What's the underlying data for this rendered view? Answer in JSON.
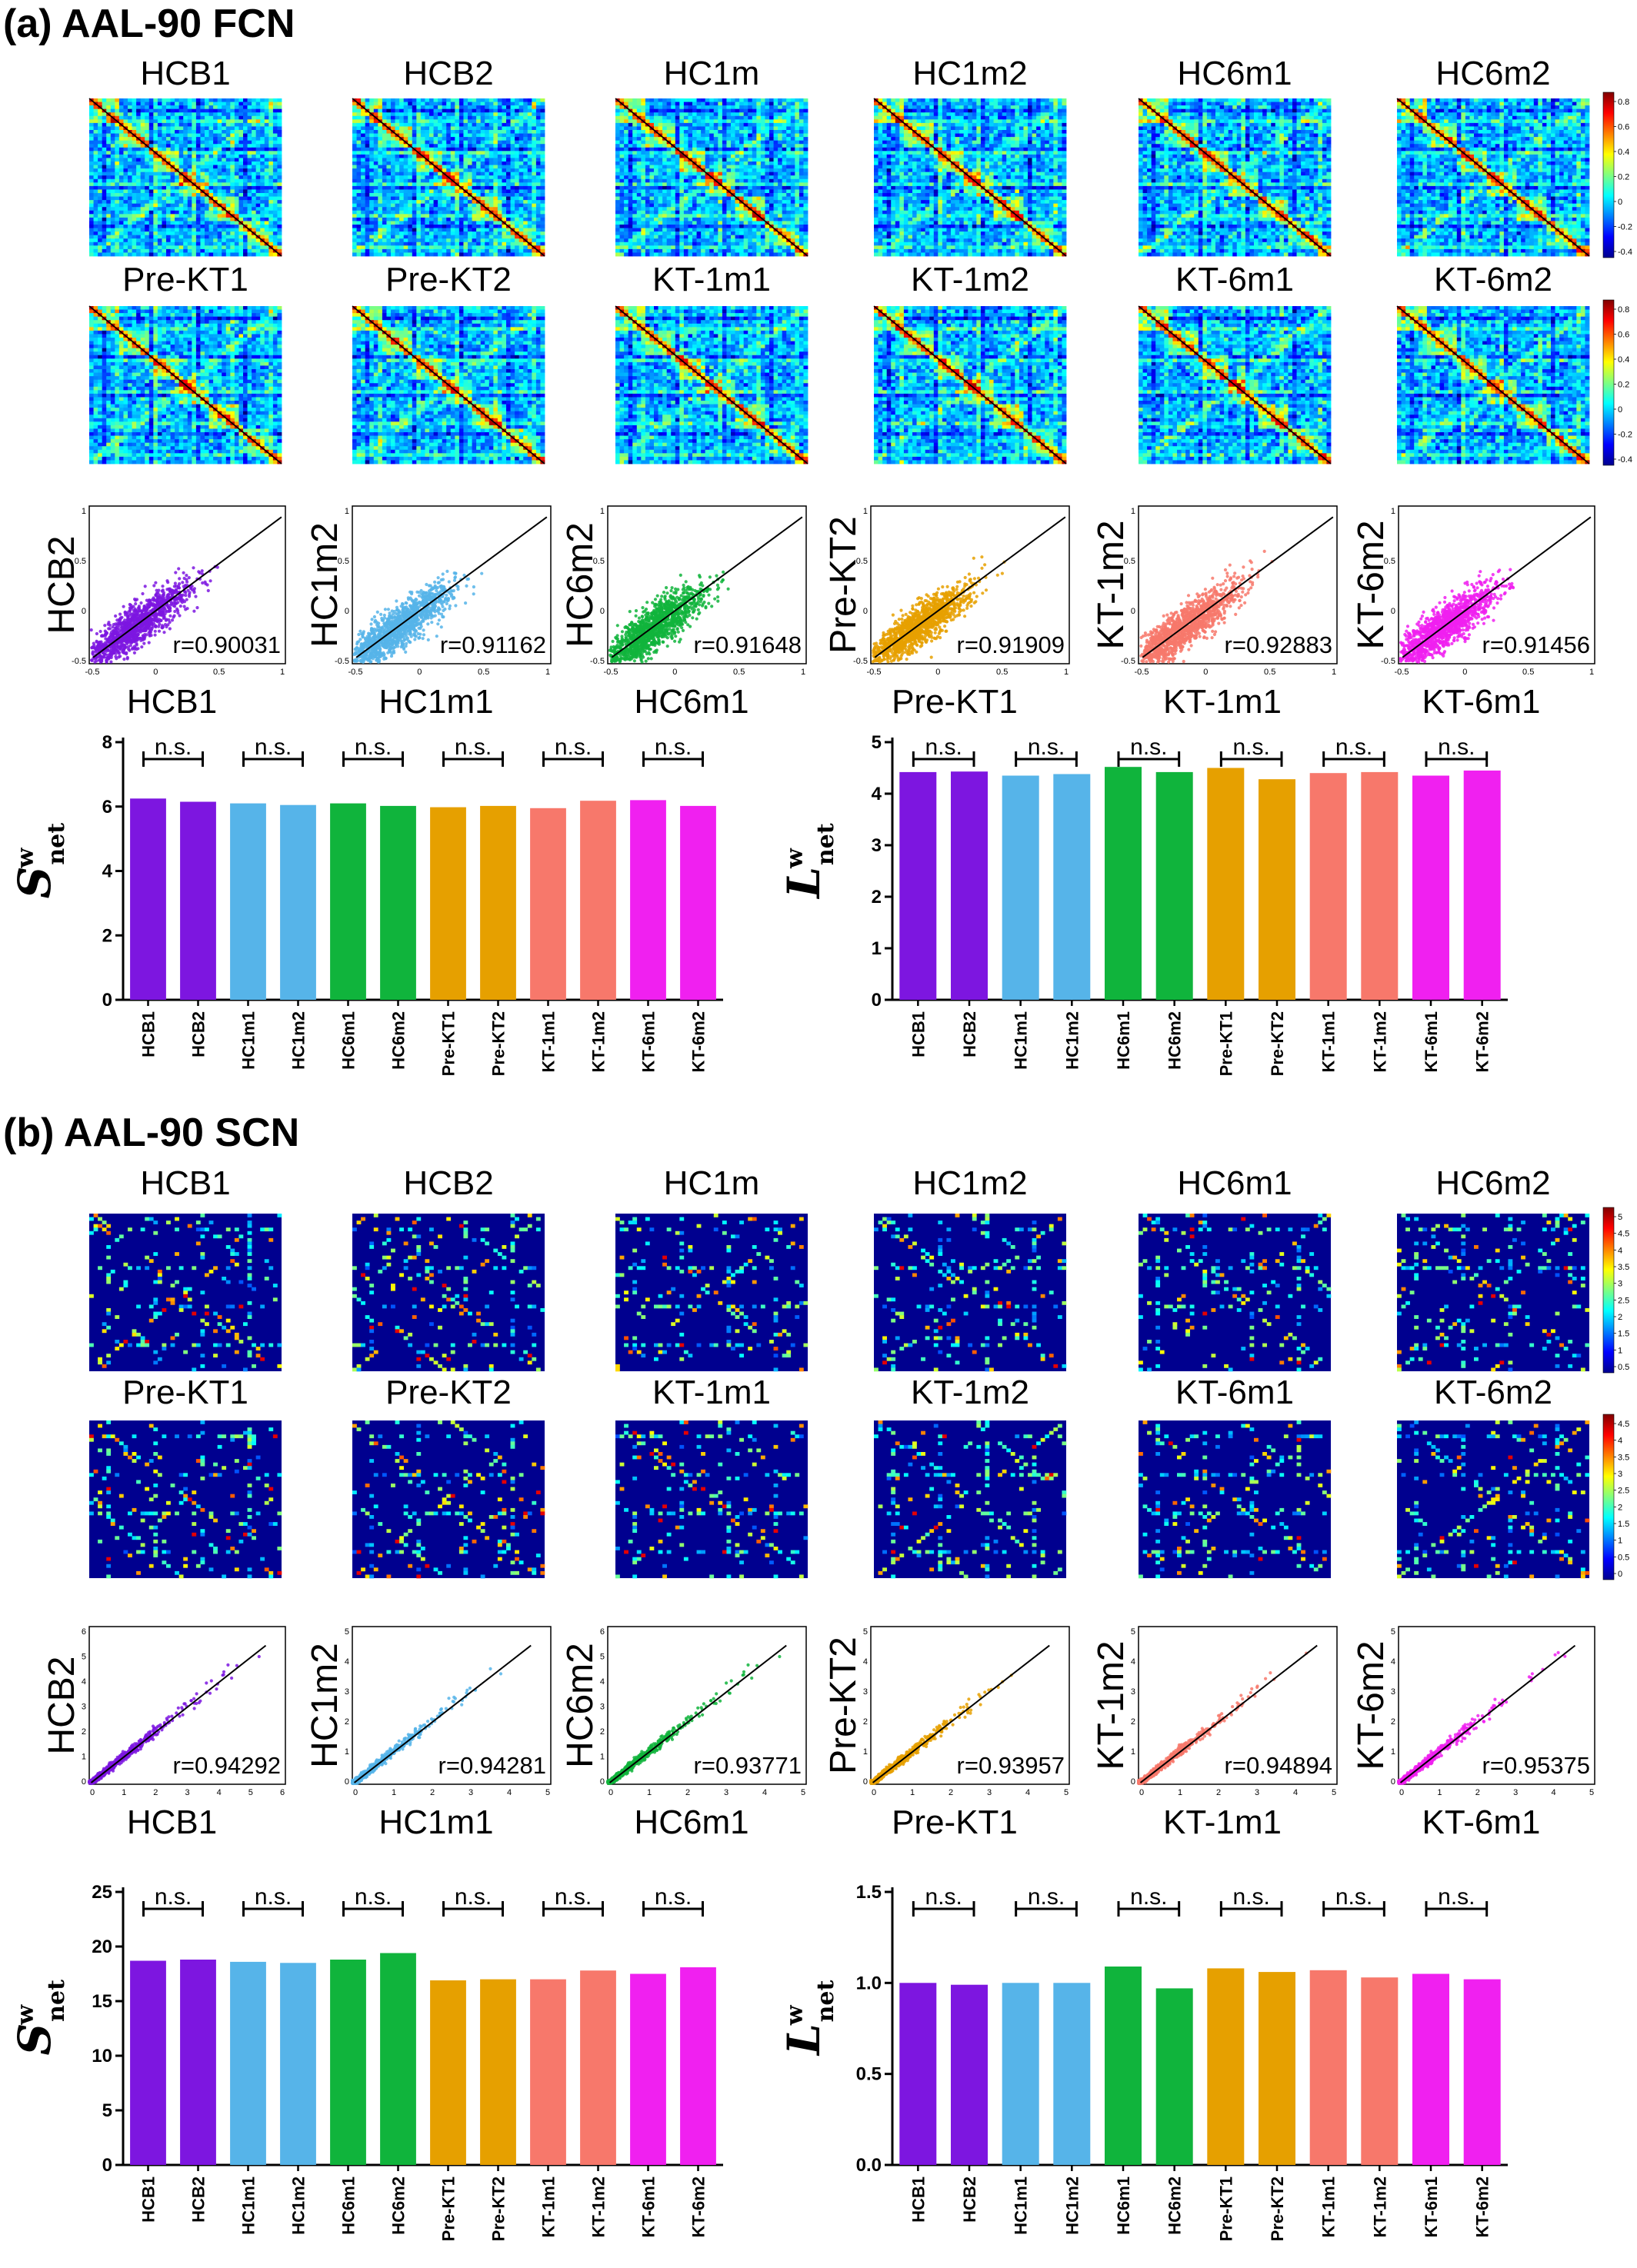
{
  "colors": {
    "HCB": "#7d16e0",
    "HC1m": "#56b4e9",
    "HC6m": "#10b43c",
    "PreKT": "#e6a000",
    "KT1m": "#f7786b",
    "KT6m": "#f020f0"
  },
  "panels": [
    {
      "id": "a",
      "title": "(a) AAL-90  FCN",
      "network": "FCN",
      "matrix_labels_row1": [
        "HCB1",
        "HCB2",
        "HC1m",
        "HC1m2",
        "HC6m1",
        "HC6m2"
      ],
      "matrix_labels_row2": [
        "Pre-KT1",
        "Pre-KT2",
        "KT-1m1",
        "KT-1m2",
        "KT-6m1",
        "KT-6m2"
      ],
      "colorbar_ticks": [
        "0.8",
        "0.6",
        "0.4",
        "0.2",
        "0",
        "-0.2",
        "-0.4"
      ],
      "colorbar_range": [
        -0.5,
        1.0
      ],
      "scatter": [
        {
          "xlabel": "HCB1",
          "ylabel": "HCB2",
          "r": "r=0.90031",
          "color_key": "HCB",
          "xticks": [
            "-0.5",
            "0",
            "0.5",
            "1"
          ],
          "yticks": [
            "1",
            "0.5",
            "0",
            "-0.5"
          ]
        },
        {
          "xlabel": "HC1m1",
          "ylabel": "HC1m2",
          "r": "r=0.91162",
          "color_key": "HC1m",
          "xticks": [
            "-0.5",
            "0",
            "0.5",
            "1"
          ],
          "yticks": [
            "1",
            "0.5",
            "0",
            "-0.5"
          ]
        },
        {
          "xlabel": "HC6m1",
          "ylabel": "HC6m2",
          "r": "r=0.91648",
          "color_key": "HC6m",
          "xticks": [
            "-0.5",
            "0",
            "0.5",
            "1"
          ],
          "yticks": [
            "1",
            "0.5",
            "0",
            "-0.5"
          ]
        },
        {
          "xlabel": "Pre-KT1",
          "ylabel": "Pre-KT2",
          "r": "r=0.91909",
          "color_key": "PreKT",
          "xticks": [
            "-0.5",
            "0",
            "0.5",
            "1"
          ],
          "yticks": [
            "1",
            "0.5",
            "0",
            "-0.5"
          ]
        },
        {
          "xlabel": "KT-1m1",
          "ylabel": "KT-1m2",
          "r": "r=0.92883",
          "color_key": "KT1m",
          "xticks": [
            "-0.5",
            "0",
            "0.5",
            "1"
          ],
          "yticks": [
            "1",
            "0.5",
            "0",
            "-0.5"
          ]
        },
        {
          "xlabel": "KT-6m1",
          "ylabel": "KT-6m2",
          "r": "r=0.91456",
          "color_key": "KT6m",
          "xticks": [
            "-0.5",
            "0",
            "0.5",
            "1"
          ],
          "yticks": [
            "1",
            "0.5",
            "0",
            "-0.5"
          ]
        }
      ],
      "bars": [
        {
          "ylabel_main": "S",
          "ylabel_sup": "w",
          "ylabel_sub": "net",
          "ymax": 8,
          "yticks": [
            "0",
            "2",
            "4",
            "6",
            "8"
          ],
          "ytick_values": [
            0,
            2,
            4,
            6,
            8
          ],
          "values": [
            6.25,
            6.15,
            6.1,
            6.05,
            6.1,
            6.02,
            5.98,
            6.02,
            5.95,
            6.18,
            6.2,
            6.02
          ],
          "ns": "n.s."
        },
        {
          "ylabel_main": "L",
          "ylabel_sup": "w",
          "ylabel_sub": "net",
          "ymax": 5,
          "yticks": [
            "0",
            "1",
            "2",
            "3",
            "4",
            "5"
          ],
          "ytick_values": [
            0,
            1,
            2,
            3,
            4,
            5
          ],
          "values": [
            4.42,
            4.43,
            4.35,
            4.38,
            4.52,
            4.42,
            4.5,
            4.28,
            4.4,
            4.42,
            4.35,
            4.45
          ],
          "ns": "n.s."
        }
      ]
    },
    {
      "id": "b",
      "title": "(b) AAL-90  SCN",
      "network": "SCN",
      "matrix_labels_row1": [
        "HCB1",
        "HCB2",
        "HC1m",
        "HC1m2",
        "HC6m1",
        "HC6m2"
      ],
      "matrix_labels_row2": [
        "Pre-KT1",
        "Pre-KT2",
        "KT-1m1",
        "KT-1m2",
        "KT-6m1",
        "KT-6m2"
      ],
      "colorbar_ticks": [
        "5",
        "4.5",
        "4",
        "3.5",
        "3",
        "2.5",
        "2",
        "1.5",
        "1",
        "0.5"
      ],
      "colorbar_ticks_row2": [
        "4.5",
        "4",
        "3.5",
        "3",
        "2.5",
        "2",
        "1.5",
        "1",
        "0.5",
        "0"
      ],
      "colorbar_range": [
        0,
        5.4
      ],
      "scatter": [
        {
          "xlabel": "HCB1",
          "ylabel": "HCB2",
          "r": "r=0.94292",
          "color_key": "HCB",
          "xticks": [
            "0",
            "1",
            "2",
            "3",
            "4",
            "5",
            "6"
          ],
          "yticks": [
            "6",
            "5",
            "4",
            "3",
            "2",
            "1",
            "0"
          ]
        },
        {
          "xlabel": "HC1m1",
          "ylabel": "HC1m2",
          "r": "r=0.94281",
          "color_key": "HC1m",
          "xticks": [
            "0",
            "1",
            "2",
            "3",
            "4",
            "5"
          ],
          "yticks": [
            "5",
            "4",
            "3",
            "2",
            "1",
            "0"
          ]
        },
        {
          "xlabel": "HC6m1",
          "ylabel": "HC6m2",
          "r": "r=0.93771",
          "color_key": "HC6m",
          "xticks": [
            "0",
            "1",
            "2",
            "3",
            "4",
            "5"
          ],
          "yticks": [
            "6",
            "5",
            "4",
            "3",
            "2",
            "1",
            "0"
          ]
        },
        {
          "xlabel": "Pre-KT1",
          "ylabel": "Pre-KT2",
          "r": "r=0.93957",
          "color_key": "PreKT",
          "xticks": [
            "0",
            "1",
            "2",
            "3",
            "4",
            "5"
          ],
          "yticks": [
            "5",
            "4",
            "3",
            "2",
            "1",
            "0"
          ]
        },
        {
          "xlabel": "KT-1m1",
          "ylabel": "KT-1m2",
          "r": "r=0.94894",
          "color_key": "KT1m",
          "xticks": [
            "0",
            "1",
            "2",
            "3",
            "4",
            "5"
          ],
          "yticks": [
            "5",
            "4",
            "3",
            "2",
            "1",
            "0"
          ]
        },
        {
          "xlabel": "KT-6m1",
          "ylabel": "KT-6m2",
          "r": "r=0.95375",
          "color_key": "KT6m",
          "xticks": [
            "0",
            "1",
            "2",
            "3",
            "4",
            "5"
          ],
          "yticks": [
            "5",
            "4",
            "3",
            "2",
            "1",
            "0"
          ]
        }
      ],
      "bars": [
        {
          "ylabel_main": "S",
          "ylabel_sup": "w",
          "ylabel_sub": "net",
          "ymax": 25,
          "yticks": [
            "0",
            "5",
            "10",
            "15",
            "20",
            "25"
          ],
          "ytick_values": [
            0,
            5,
            10,
            15,
            20,
            25
          ],
          "values": [
            18.7,
            18.8,
            18.6,
            18.5,
            18.8,
            19.4,
            16.9,
            17.0,
            17.0,
            17.8,
            17.5,
            18.1
          ],
          "ns": "n.s."
        },
        {
          "ylabel_main": "L",
          "ylabel_sup": "w",
          "ylabel_sub": "net",
          "ymax": 1.5,
          "yticks": [
            "0.0",
            "0.5",
            "1.0",
            "1.5"
          ],
          "ytick_values": [
            0,
            0.5,
            1.0,
            1.5
          ],
          "values": [
            1.0,
            0.99,
            1.0,
            1.0,
            1.09,
            0.97,
            1.08,
            1.06,
            1.07,
            1.03,
            1.05,
            1.02
          ],
          "ns": "n.s."
        }
      ]
    }
  ],
  "bar_categories": [
    "HCB1",
    "HCB2",
    "HC1m1",
    "HC1m2",
    "HC6m1",
    "HC6m2",
    "Pre-KT1",
    "Pre-KT2",
    "KT-1m1",
    "KT-1m2",
    "KT-6m1",
    "KT-6m2"
  ],
  "bar_color_keys": [
    "HCB",
    "HCB",
    "HC1m",
    "HC1m",
    "HC6m",
    "HC6m",
    "PreKT",
    "PreKT",
    "KT1m",
    "KT1m",
    "KT6m",
    "KT6m"
  ],
  "chart_data": [
    {
      "type": "heatmap",
      "title": "(a) AAL-90  FCN",
      "matrices": [
        "HCB1",
        "HCB2",
        "HC1m",
        "HC1m2",
        "HC6m1",
        "HC6m2",
        "Pre-KT1",
        "Pre-KT2",
        "KT-1m1",
        "KT-1m2",
        "KT-6m1",
        "KT-6m2"
      ],
      "colorbar_range": [
        -0.5,
        1.0
      ]
    },
    {
      "type": "scatter",
      "network": "FCN",
      "pairs": [
        [
          "HCB1",
          "HCB2",
          0.90031
        ],
        [
          "HC1m1",
          "HC1m2",
          0.91162
        ],
        [
          "HC6m1",
          "HC6m2",
          0.91648
        ],
        [
          "Pre-KT1",
          "Pre-KT2",
          0.91909
        ],
        [
          "KT-1m1",
          "KT-1m2",
          0.92883
        ],
        [
          "KT-6m1",
          "KT-6m2",
          0.91456
        ]
      ],
      "xlim": [
        -0.5,
        1
      ],
      "ylim": [
        -0.5,
        1
      ]
    },
    {
      "type": "bar",
      "network": "FCN",
      "ylabel": "S net w",
      "categories": [
        "HCB1",
        "HCB2",
        "HC1m1",
        "HC1m2",
        "HC6m1",
        "HC6m2",
        "Pre-KT1",
        "Pre-KT2",
        "KT-1m1",
        "KT-1m2",
        "KT-6m1",
        "KT-6m2"
      ],
      "values": [
        6.25,
        6.15,
        6.1,
        6.05,
        6.1,
        6.02,
        5.98,
        6.02,
        5.95,
        6.18,
        6.2,
        6.02
      ],
      "ylim": [
        0,
        8
      ],
      "annotation": "n.s."
    },
    {
      "type": "bar",
      "network": "FCN",
      "ylabel": "L net w",
      "categories": [
        "HCB1",
        "HCB2",
        "HC1m1",
        "HC1m2",
        "HC6m1",
        "HC6m2",
        "Pre-KT1",
        "Pre-KT2",
        "KT-1m1",
        "KT-1m2",
        "KT-6m1",
        "KT-6m2"
      ],
      "values": [
        4.42,
        4.43,
        4.35,
        4.38,
        4.52,
        4.42,
        4.5,
        4.28,
        4.4,
        4.42,
        4.35,
        4.45
      ],
      "ylim": [
        0,
        5
      ],
      "annotation": "n.s."
    },
    {
      "type": "heatmap",
      "title": "(b) AAL-90  SCN",
      "matrices": [
        "HCB1",
        "HCB2",
        "HC1m",
        "HC1m2",
        "HC6m1",
        "HC6m2",
        "Pre-KT1",
        "Pre-KT2",
        "KT-1m1",
        "KT-1m2",
        "KT-6m1",
        "KT-6m2"
      ],
      "colorbar_range": [
        0,
        5.4
      ]
    },
    {
      "type": "scatter",
      "network": "SCN",
      "pairs": [
        [
          "HCB1",
          "HCB2",
          0.94292
        ],
        [
          "HC1m1",
          "HC1m2",
          0.94281
        ],
        [
          "HC6m1",
          "HC6m2",
          0.93771
        ],
        [
          "Pre-KT1",
          "Pre-KT2",
          0.93957
        ],
        [
          "KT-1m1",
          "KT-1m2",
          0.94894
        ],
        [
          "KT-6m1",
          "KT-6m2",
          0.95375
        ]
      ],
      "xlim": [
        0,
        6
      ],
      "ylim": [
        0,
        6
      ]
    },
    {
      "type": "bar",
      "network": "SCN",
      "ylabel": "S net w",
      "categories": [
        "HCB1",
        "HCB2",
        "HC1m1",
        "HC1m2",
        "HC6m1",
        "HC6m2",
        "Pre-KT1",
        "Pre-KT2",
        "KT-1m1",
        "KT-1m2",
        "KT-6m1",
        "KT-6m2"
      ],
      "values": [
        18.7,
        18.8,
        18.6,
        18.5,
        18.8,
        19.4,
        16.9,
        17.0,
        17.0,
        17.8,
        17.5,
        18.1
      ],
      "ylim": [
        0,
        25
      ],
      "annotation": "n.s."
    },
    {
      "type": "bar",
      "network": "SCN",
      "ylabel": "L net w",
      "categories": [
        "HCB1",
        "HCB2",
        "HC1m1",
        "HC1m2",
        "HC6m1",
        "HC6m2",
        "Pre-KT1",
        "Pre-KT2",
        "KT-1m1",
        "KT-1m2",
        "KT-6m1",
        "KT-6m2"
      ],
      "values": [
        1.0,
        0.99,
        1.0,
        1.0,
        1.09,
        0.97,
        1.08,
        1.06,
        1.07,
        1.03,
        1.05,
        1.02
      ],
      "ylim": [
        0,
        1.5
      ],
      "annotation": "n.s."
    }
  ]
}
